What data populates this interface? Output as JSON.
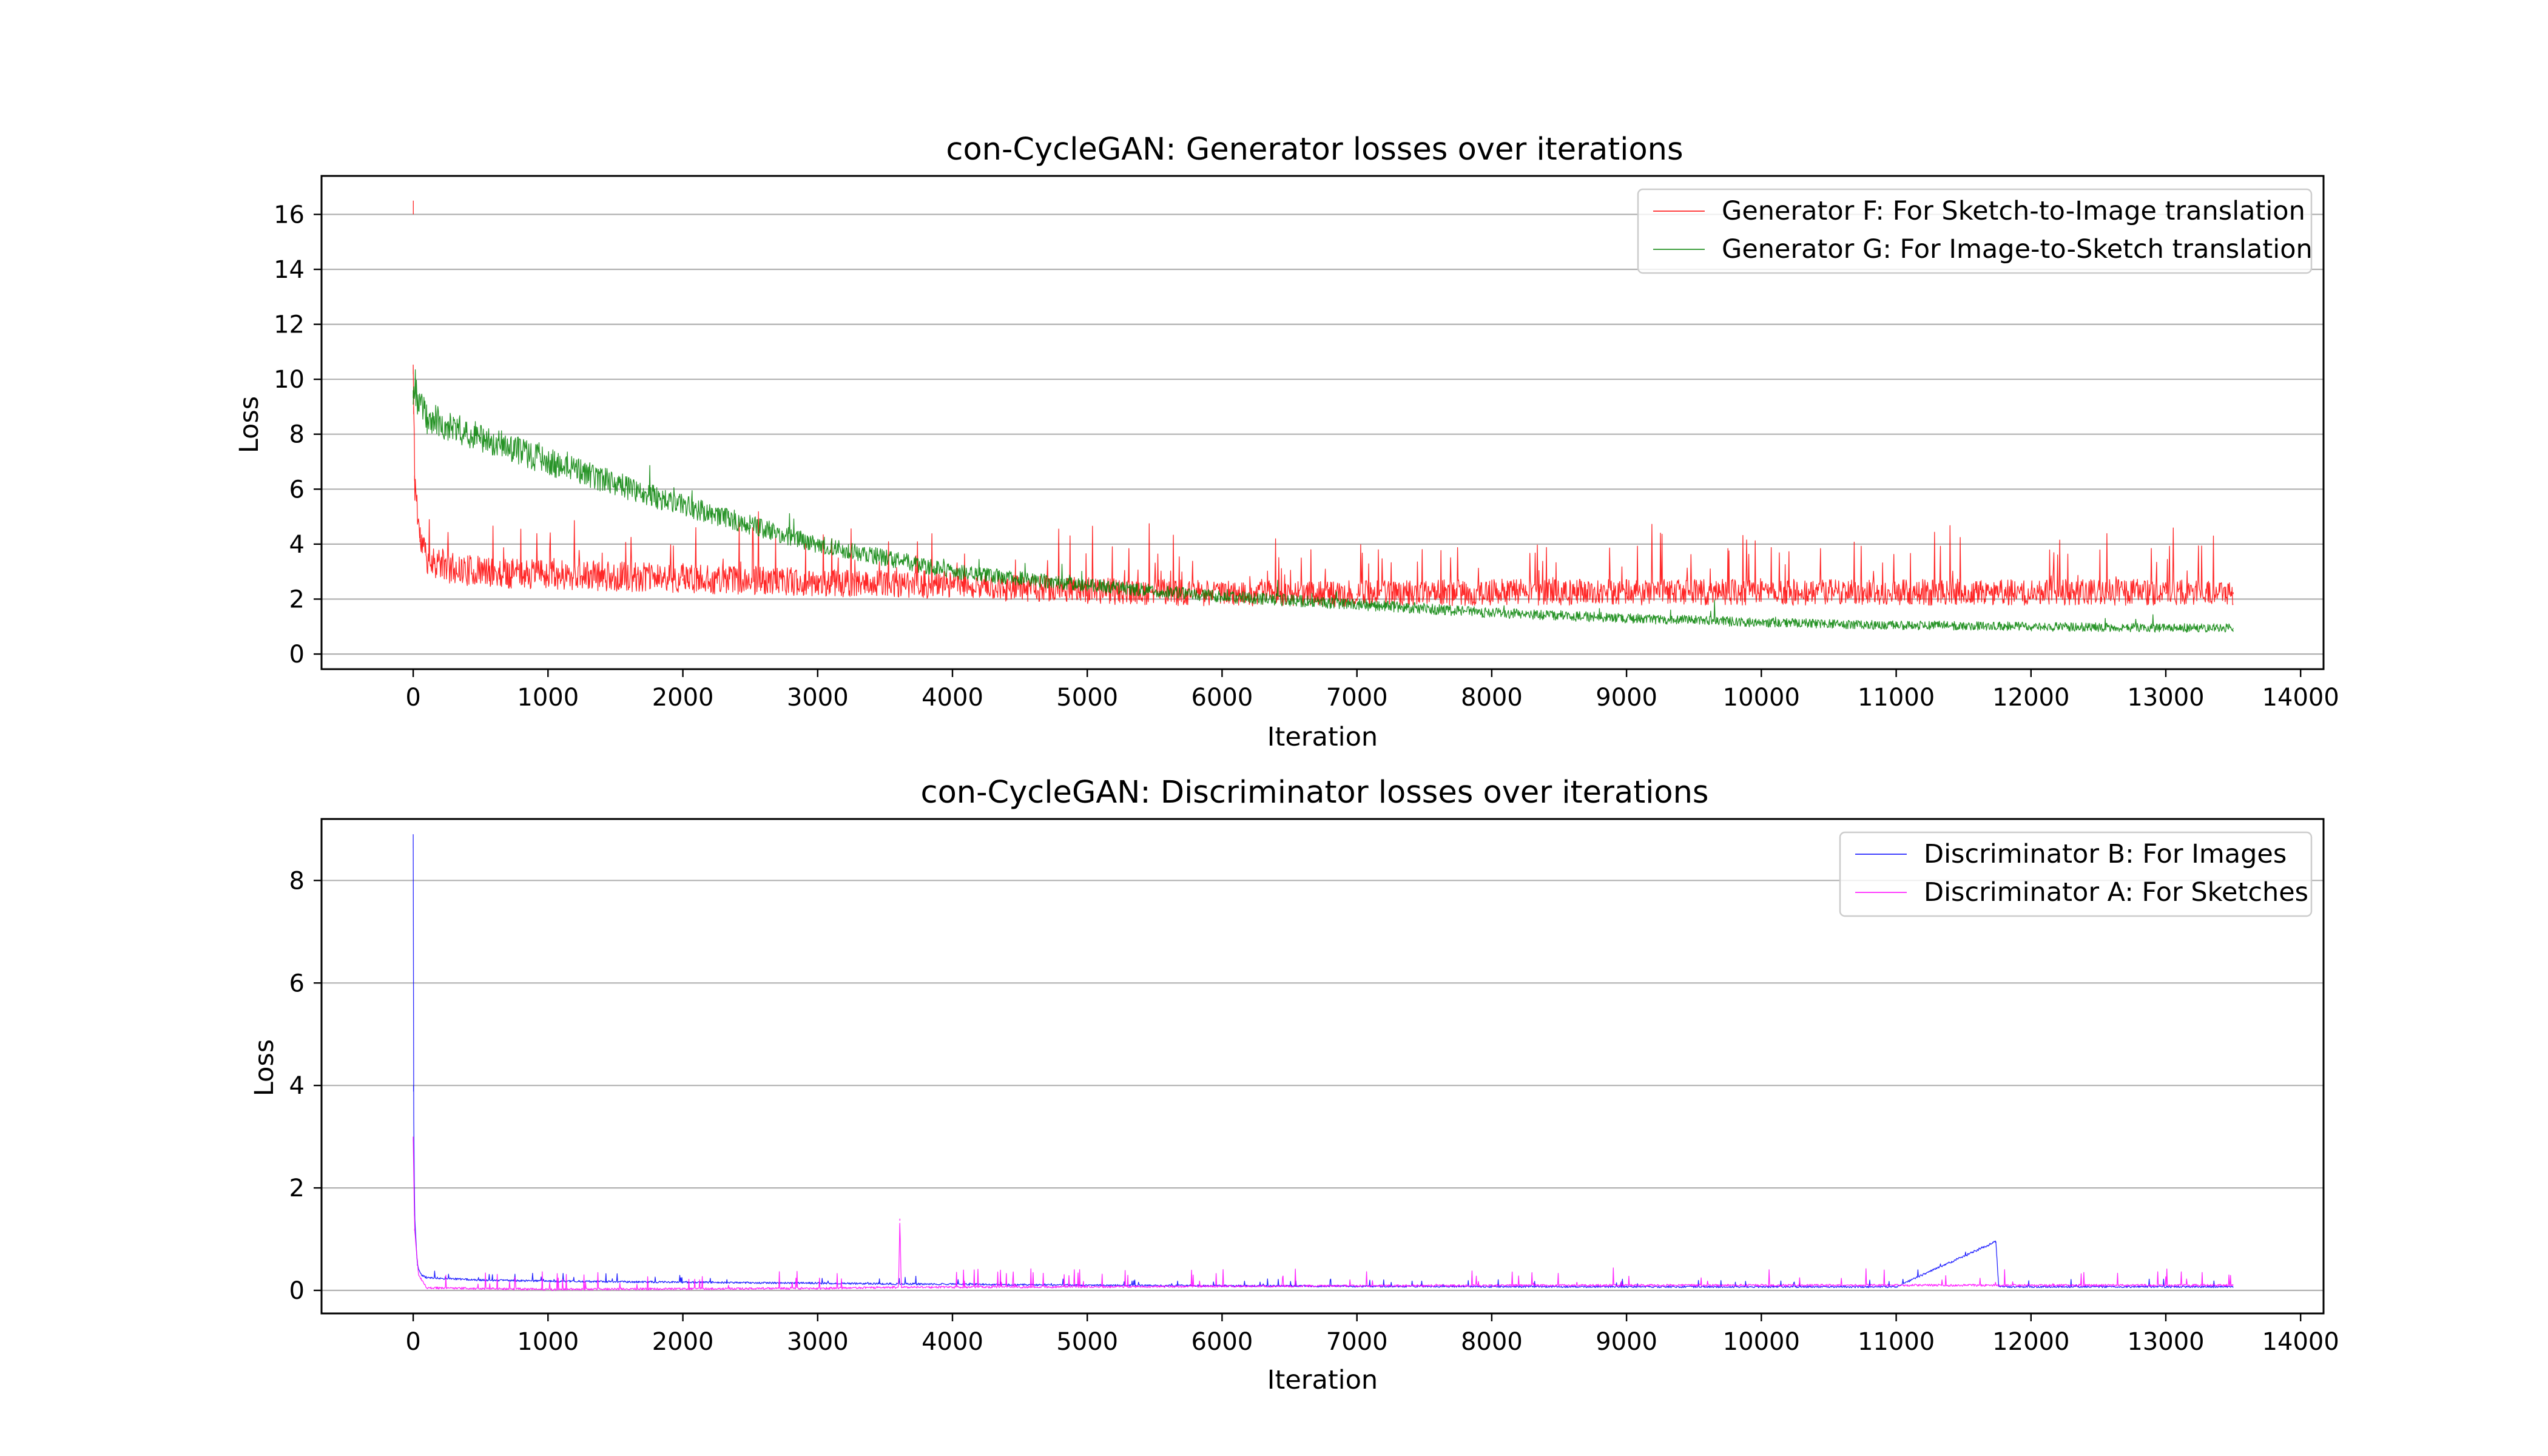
{
  "chart_data": [
    {
      "type": "line",
      "title": "con-CycleGAN: Generator losses over iterations",
      "xlabel": "Iteration",
      "ylabel": "Loss",
      "xlim": [
        -680,
        14170
      ],
      "ylim": [
        -0.55,
        17.4
      ],
      "xticks": [
        0,
        1000,
        2000,
        3000,
        4000,
        5000,
        6000,
        7000,
        8000,
        9000,
        10000,
        11000,
        12000,
        13000,
        14000
      ],
      "yticks": [
        0,
        2,
        4,
        6,
        8,
        10,
        12,
        14,
        16
      ],
      "grid": "horizontal",
      "legend_position": "top-right",
      "series": [
        {
          "name": "Generator F: For Sketch-to-Image translation",
          "color": "#ff0000",
          "points": [
            [
              0,
              10.5
            ],
            [
              1,
              16.5
            ],
            [
              3,
              9.0
            ],
            [
              10,
              6.5
            ],
            [
              50,
              4.2
            ],
            [
              100,
              3.5
            ],
            [
              300,
              3.1
            ],
            [
              600,
              2.95
            ],
            [
              1000,
              2.9
            ],
            [
              2000,
              2.75
            ],
            [
              3000,
              2.6
            ],
            [
              4000,
              2.5
            ],
            [
              5000,
              2.3
            ],
            [
              6000,
              2.2
            ],
            [
              7000,
              2.2
            ],
            [
              8000,
              2.25
            ],
            [
              9000,
              2.25
            ],
            [
              10000,
              2.25
            ],
            [
              11000,
              2.25
            ],
            [
              12000,
              2.25
            ],
            [
              13000,
              2.25
            ],
            [
              13500,
              2.25
            ]
          ]
        },
        {
          "name": "Generator G: For Image-to-Sketch translation",
          "color": "#008000",
          "points": [
            [
              0,
              9.6
            ],
            [
              100,
              8.6
            ],
            [
              500,
              7.9
            ],
            [
              1000,
              7.0
            ],
            [
              1500,
              6.2
            ],
            [
              2000,
              5.4
            ],
            [
              2500,
              4.7
            ],
            [
              3000,
              4.0
            ],
            [
              3500,
              3.5
            ],
            [
              4000,
              3.0
            ],
            [
              5000,
              2.5
            ],
            [
              6000,
              2.1
            ],
            [
              7000,
              1.8
            ],
            [
              8000,
              1.5
            ],
            [
              9000,
              1.3
            ],
            [
              10000,
              1.15
            ],
            [
              11000,
              1.05
            ],
            [
              12000,
              1.0
            ],
            [
              13000,
              0.95
            ],
            [
              13500,
              0.95
            ]
          ]
        }
      ]
    },
    {
      "type": "line",
      "title": "con-CycleGAN: Discriminator losses over iterations",
      "xlabel": "Iteration",
      "ylabel": "Loss",
      "xlim": [
        -680,
        14170
      ],
      "ylim": [
        -0.45,
        9.2
      ],
      "xticks": [
        0,
        1000,
        2000,
        3000,
        4000,
        5000,
        6000,
        7000,
        8000,
        9000,
        10000,
        11000,
        12000,
        13000,
        14000
      ],
      "yticks": [
        0,
        2,
        4,
        6,
        8
      ],
      "grid": "horizontal",
      "legend_position": "top-right",
      "series": [
        {
          "name": "Discriminator B: For Images",
          "color": "#0000ff",
          "points": [
            [
              0,
              8.9
            ],
            [
              2,
              4.0
            ],
            [
              10,
              1.5
            ],
            [
              30,
              0.5
            ],
            [
              60,
              0.3
            ],
            [
              100,
              0.25
            ],
            [
              500,
              0.2
            ],
            [
              1000,
              0.18
            ],
            [
              2000,
              0.16
            ],
            [
              3000,
              0.14
            ],
            [
              4000,
              0.12
            ],
            [
              5000,
              0.1
            ],
            [
              7000,
              0.08
            ],
            [
              9000,
              0.07
            ],
            [
              11000,
              0.07
            ],
            [
              11740,
              0.95
            ],
            [
              11760,
              0.07
            ],
            [
              13500,
              0.07
            ]
          ]
        },
        {
          "name": "Discriminator A: For Sketches",
          "color": "#ff00ff",
          "points": [
            [
              0,
              3.0
            ],
            [
              10,
              1.2
            ],
            [
              40,
              0.3
            ],
            [
              100,
              0.05
            ],
            [
              1000,
              0.02
            ],
            [
              2000,
              0.03
            ],
            [
              3000,
              0.04
            ],
            [
              3600,
              0.06
            ],
            [
              3610,
              1.4
            ],
            [
              3620,
              0.06
            ],
            [
              5000,
              0.07
            ],
            [
              7000,
              0.09
            ],
            [
              9000,
              0.1
            ],
            [
              11000,
              0.1
            ],
            [
              13500,
              0.1
            ]
          ]
        }
      ]
    }
  ]
}
